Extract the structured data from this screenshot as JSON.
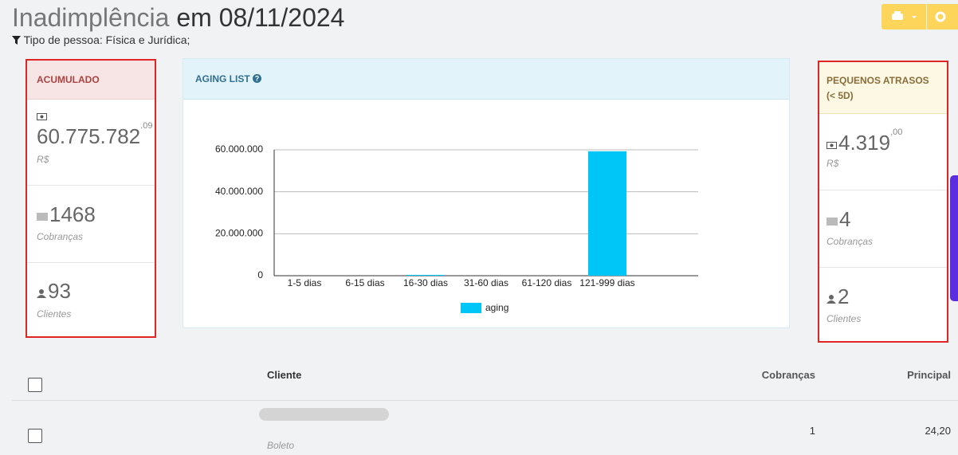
{
  "header": {
    "title_light": "Inadimplência",
    "title_bold": "em 08/11/2024",
    "filter": "Tipo de pessoa: Física e Jurídica;"
  },
  "acumulado": {
    "title": "ACUMULADO",
    "amount": "60.775.782",
    "cents": ".09",
    "currency": "R$",
    "cobrancas": "1468",
    "cobrancas_label": "Cobranças",
    "clientes": "93",
    "clientes_label": "Clientes"
  },
  "aging": {
    "title": "AGING LIST",
    "chart_data": {
      "type": "bar",
      "categories": [
        "1-5 dias",
        "6-15 dias",
        "16-30 dias",
        "31-60 dias",
        "61-120 dias",
        "121-999 dias"
      ],
      "series": [
        {
          "name": "aging",
          "color": "#00c5f7",
          "values": [
            0,
            0,
            400000,
            0,
            0,
            59300000
          ]
        }
      ],
      "ylim": [
        0,
        60000000
      ],
      "yticks": [
        0,
        {
          "value": 20000000,
          "label": "20.000.000"
        },
        {
          "value": 40000000,
          "label": "40.000.000"
        },
        {
          "value": 60000000,
          "label": "60.000.000"
        }
      ],
      "grid": true
    }
  },
  "pequenos": {
    "title": "PEQUENOS ATRASOS",
    "subtitle": "(< 5D)",
    "amount": "4.319",
    "cents": ",00",
    "currency": "R$",
    "cobrancas": "4",
    "cobrancas_label": "Cobranças",
    "clientes": "2",
    "clientes_label": "Clientes"
  },
  "table": {
    "headers": {
      "cliente": "Cliente",
      "cobrancas": "Cobranças",
      "principal": "Principal"
    },
    "rows": [
      {
        "tipo": "Boleto",
        "cobrancas": "1",
        "principal": "24,20"
      }
    ]
  }
}
